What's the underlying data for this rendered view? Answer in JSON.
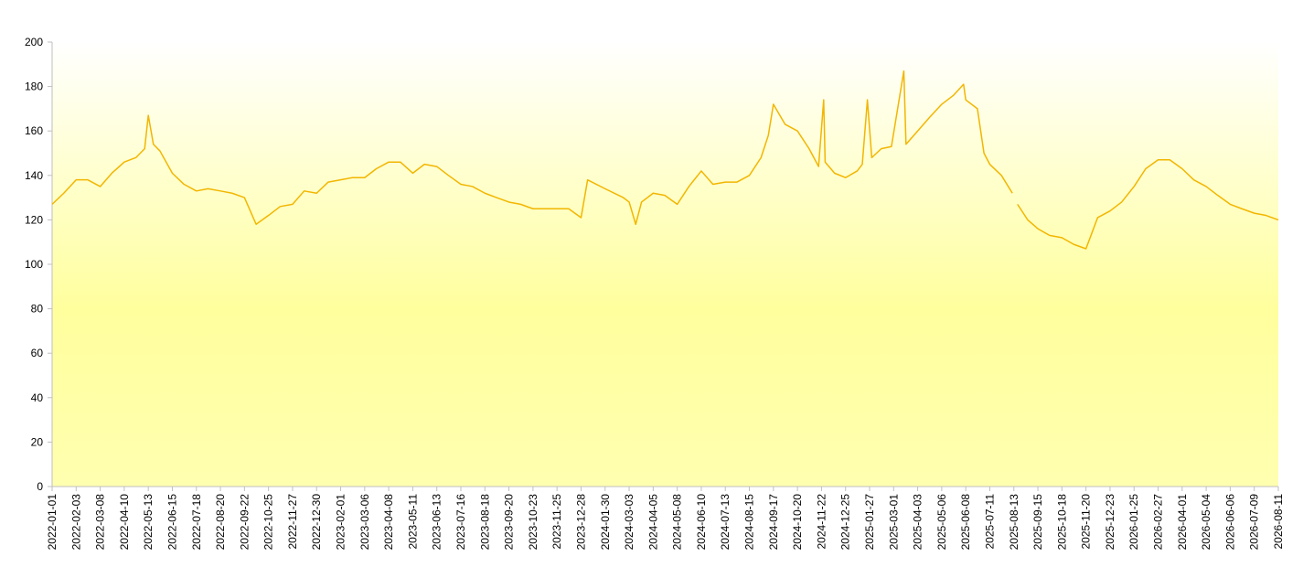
{
  "chart_data": {
    "type": "line",
    "color": "#f2b600",
    "x": [
      "2022-01-01",
      "2022-01-17",
      "2022-02-03",
      "2022-02-19",
      "2022-03-08",
      "2022-03-24",
      "2022-04-10",
      "2022-04-26",
      "2022-05-08",
      "2022-05-13",
      "2022-05-20",
      "2022-05-29",
      "2022-06-15",
      "2022-07-01",
      "2022-07-18",
      "2022-08-03",
      "2022-08-20",
      "2022-09-05",
      "2022-09-22",
      "2022-10-08",
      "2022-10-25",
      "2022-11-10",
      "2022-11-27",
      "2022-12-13",
      "2022-12-30",
      "2023-01-15",
      "2023-02-01",
      "2023-02-17",
      "2023-03-06",
      "2023-03-22",
      "2023-04-08",
      "2023-04-24",
      "2023-05-11",
      "2023-05-27",
      "2023-06-13",
      "2023-06-29",
      "2023-07-16",
      "2023-08-01",
      "2023-08-18",
      "2023-09-03",
      "2023-09-20",
      "2023-10-06",
      "2023-10-23",
      "2023-11-08",
      "2023-11-25",
      "2023-12-11",
      "2023-12-28",
      "2024-01-06",
      "2024-01-30",
      "2024-02-24",
      "2024-03-03",
      "2024-03-12",
      "2024-03-20",
      "2024-04-05",
      "2024-04-21",
      "2024-05-08",
      "2024-05-24",
      "2024-06-10",
      "2024-06-26",
      "2024-07-13",
      "2024-07-29",
      "2024-08-15",
      "2024-08-31",
      "2024-09-10",
      "2024-09-17",
      "2024-10-03",
      "2024-10-20",
      "2024-11-05",
      "2024-11-18",
      "2024-11-25",
      "2024-11-27",
      "2024-12-10",
      "2024-12-25",
      "2025-01-10",
      "2025-01-17",
      "2025-01-24",
      "2025-01-30",
      "2025-02-12",
      "2025-02-26",
      "2025-03-15",
      "2025-03-18",
      "2025-04-03",
      "2025-04-19",
      "2025-05-06",
      "2025-05-22",
      "2025-06-05",
      "2025-06-08",
      "2025-06-24",
      "2025-07-03",
      "2025-07-11",
      "2025-07-27",
      "2025-08-11",
      "2025-08-14",
      "2025-08-18",
      "2025-09-01",
      "2025-09-15",
      "2025-10-01",
      "2025-10-18",
      "2025-11-03",
      "2025-11-20",
      "2025-12-06",
      "2025-12-23",
      "2026-01-08",
      "2026-01-25",
      "2026-02-10",
      "2026-02-27",
      "2026-03-15",
      "2026-04-01",
      "2026-04-17",
      "2026-05-04",
      "2026-05-20",
      "2026-06-06",
      "2026-06-22",
      "2026-07-09",
      "2026-07-25",
      "2026-08-11"
    ],
    "values": [
      127,
      132,
      138,
      138,
      135,
      141,
      146,
      148,
      152,
      167,
      154,
      151,
      141,
      136,
      133,
      134,
      133,
      132,
      130,
      118,
      122,
      126,
      127,
      133,
      132,
      137,
      138,
      139,
      139,
      143,
      146,
      146,
      141,
      145,
      144,
      140,
      136,
      135,
      132,
      130,
      128,
      127,
      125,
      125,
      125,
      125,
      121,
      138,
      134,
      130,
      128,
      118,
      128,
      132,
      131,
      127,
      135,
      142,
      136,
      137,
      137,
      140,
      148,
      158,
      172,
      163,
      160,
      152,
      144,
      174,
      146,
      141,
      139,
      142,
      145,
      174,
      148,
      152,
      153,
      187,
      154,
      160,
      166,
      172,
      176,
      181,
      174,
      170,
      150,
      145,
      140,
      132,
      null,
      127,
      120,
      116,
      113,
      112,
      109,
      107,
      121,
      124,
      128,
      135,
      143,
      147,
      147,
      143,
      138,
      135,
      131,
      127,
      125,
      123,
      122,
      120
    ],
    "xlim": [
      "2022-01-01",
      "2026-08-11"
    ],
    "xticks": [
      "2022-01-01",
      "2022-02-03",
      "2022-03-08",
      "2022-04-10",
      "2022-05-13",
      "2022-06-15",
      "2022-07-18",
      "2022-08-20",
      "2022-09-22",
      "2022-10-25",
      "2022-11-27",
      "2022-12-30",
      "2023-02-01",
      "2023-03-06",
      "2023-04-08",
      "2023-05-11",
      "2023-06-13",
      "2023-07-16",
      "2023-08-18",
      "2023-09-20",
      "2023-10-23",
      "2023-11-25",
      "2023-12-28",
      "2024-01-30",
      "2024-03-03",
      "2024-04-05",
      "2024-05-08",
      "2024-06-10",
      "2024-07-13",
      "2024-08-15",
      "2024-09-17",
      "2024-10-20",
      "2024-11-22",
      "2024-12-25",
      "2025-01-27",
      "2025-03-01",
      "2025-04-03",
      "2025-05-06",
      "2025-06-08",
      "2025-07-11",
      "2025-08-13",
      "2025-09-15",
      "2025-10-18",
      "2025-11-20",
      "2025-12-23",
      "2026-01-25",
      "2026-02-27",
      "2026-04-01",
      "2026-05-04",
      "2026-06-06",
      "2026-07-09",
      "2026-08-11"
    ],
    "ylim": [
      0,
      200
    ],
    "yticks": [
      0,
      20,
      40,
      60,
      80,
      100,
      120,
      140,
      160,
      180,
      200
    ]
  }
}
